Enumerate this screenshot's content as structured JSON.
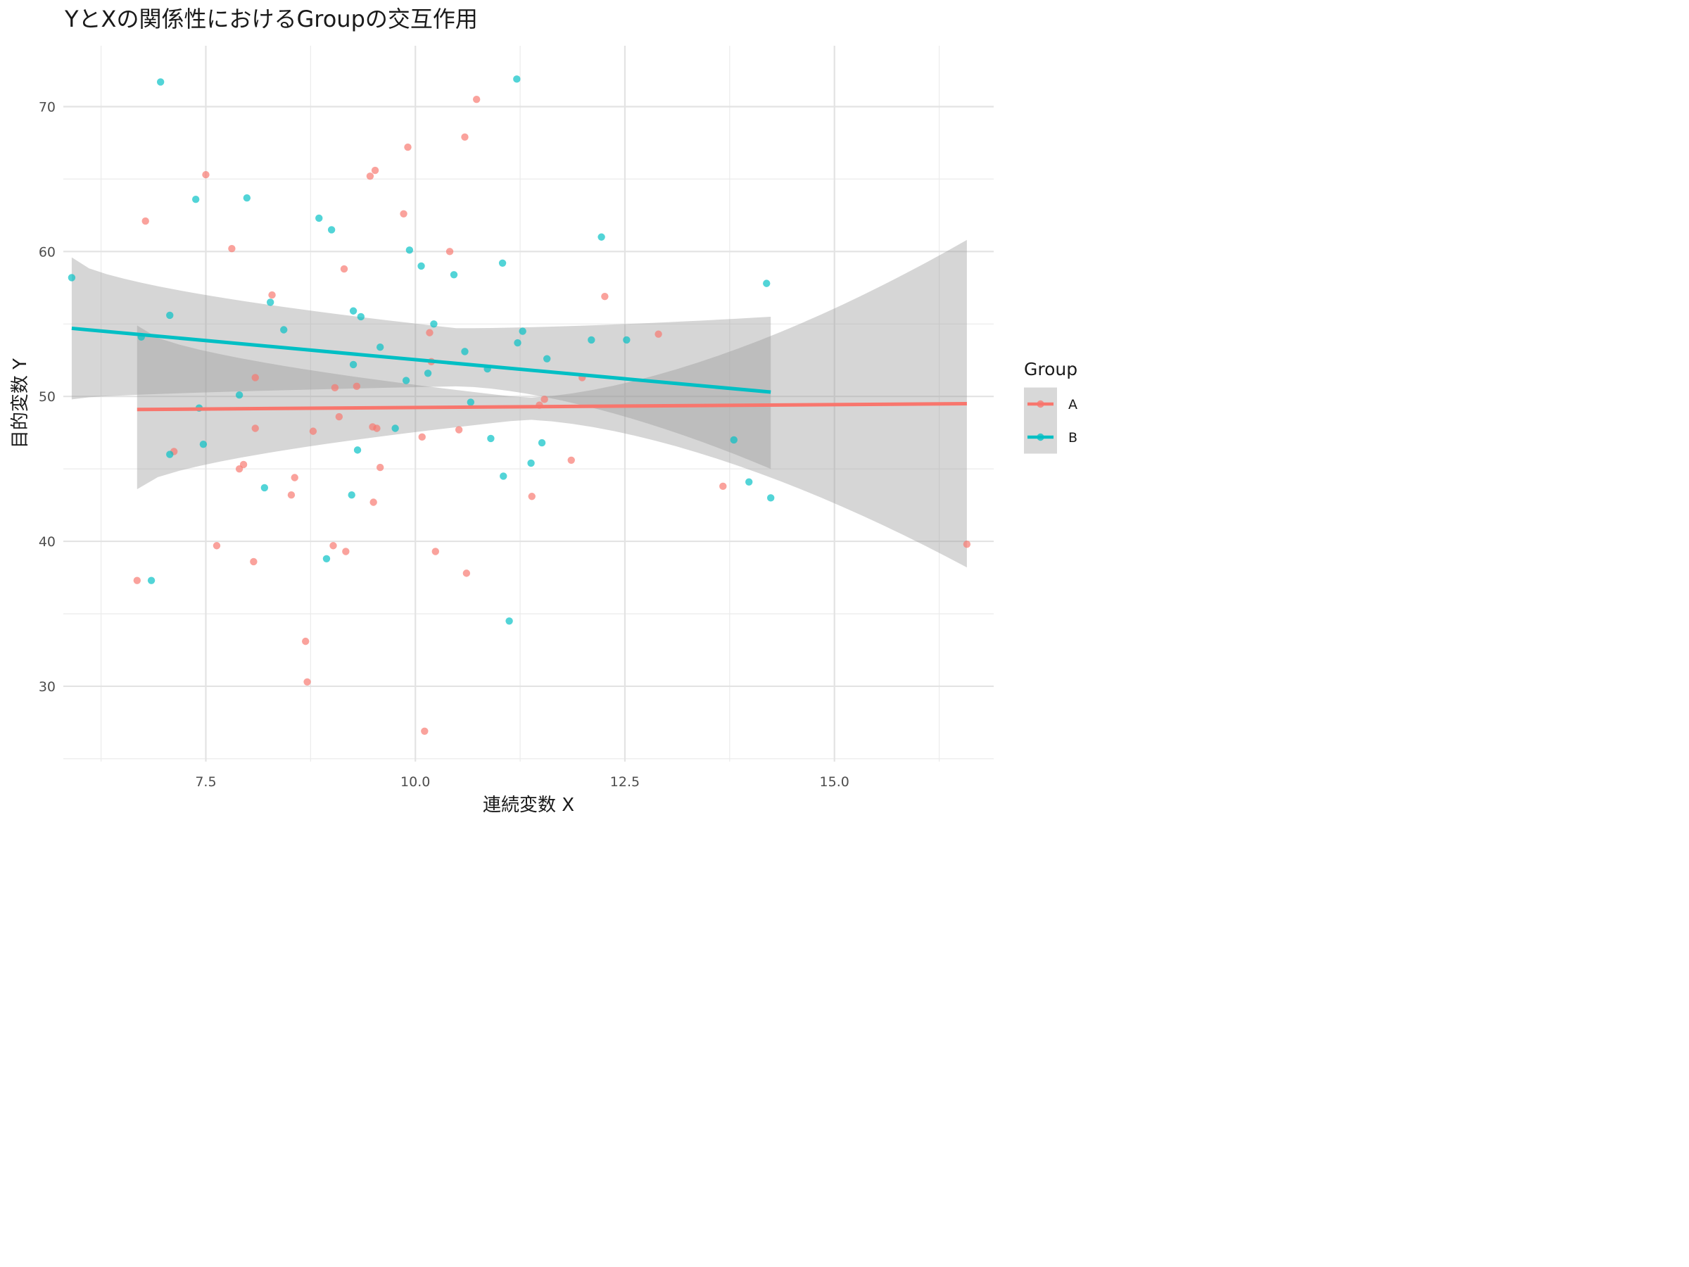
{
  "chart_data": {
    "type": "scatter",
    "title": "YとXの関係性におけるGroupの交互作用",
    "xlabel": "連続変数 X",
    "ylabel": "目的変数 Y",
    "xlim": [
      5.8,
      16.9
    ],
    "ylim": [
      24.8,
      74.2
    ],
    "x_ticks": [
      7.5,
      10.0,
      12.5,
      15.0
    ],
    "x_tick_labels": [
      "7.5",
      "10.0",
      "12.5",
      "15.0"
    ],
    "y_ticks": [
      30,
      40,
      50,
      60,
      70
    ],
    "y_tick_labels": [
      "30",
      "40",
      "50",
      "60",
      "70"
    ],
    "grid": true,
    "legend": {
      "title": "Group",
      "position": "right"
    },
    "series": [
      {
        "name": "A",
        "color": "#F8766D",
        "points": [
          [
            6.68,
            37.3
          ],
          [
            6.78,
            62.1
          ],
          [
            7.12,
            46.2
          ],
          [
            7.5,
            65.3
          ],
          [
            7.63,
            39.7
          ],
          [
            7.81,
            60.2
          ],
          [
            7.9,
            45.0
          ],
          [
            7.95,
            45.3
          ],
          [
            8.07,
            38.6
          ],
          [
            8.09,
            51.3
          ],
          [
            8.09,
            47.8
          ],
          [
            8.29,
            57.0
          ],
          [
            8.52,
            43.2
          ],
          [
            8.56,
            44.4
          ],
          [
            8.69,
            33.1
          ],
          [
            8.71,
            30.3
          ],
          [
            8.78,
            47.6
          ],
          [
            9.02,
            39.7
          ],
          [
            9.04,
            50.6
          ],
          [
            9.09,
            48.6
          ],
          [
            9.15,
            58.8
          ],
          [
            9.17,
            39.3
          ],
          [
            9.3,
            50.7
          ],
          [
            9.46,
            65.2
          ],
          [
            9.49,
            47.9
          ],
          [
            9.5,
            42.7
          ],
          [
            9.52,
            65.6
          ],
          [
            9.54,
            47.8
          ],
          [
            9.58,
            45.1
          ],
          [
            9.86,
            62.6
          ],
          [
            9.91,
            67.2
          ],
          [
            10.08,
            47.2
          ],
          [
            10.11,
            26.9
          ],
          [
            10.17,
            54.4
          ],
          [
            10.19,
            52.4
          ],
          [
            10.24,
            39.3
          ],
          [
            10.41,
            60.0
          ],
          [
            10.52,
            47.7
          ],
          [
            10.59,
            67.9
          ],
          [
            10.61,
            37.8
          ],
          [
            10.73,
            70.5
          ],
          [
            11.39,
            43.1
          ],
          [
            11.48,
            49.4
          ],
          [
            11.54,
            49.8
          ],
          [
            11.86,
            45.6
          ],
          [
            11.99,
            51.3
          ],
          [
            12.26,
            56.9
          ],
          [
            12.9,
            54.3
          ],
          [
            13.67,
            43.8
          ],
          [
            16.58,
            39.8
          ]
        ],
        "fit": {
          "x": [
            6.68,
            16.58
          ],
          "y": [
            49.1,
            49.5
          ]
        },
        "ci": {
          "x": [
            6.68,
            16.58
          ],
          "upper": [
            54.9,
            60.8
          ],
          "lower": [
            43.6,
            38.2
          ],
          "x_min_width": 11.3,
          "upper_mid": 49.9,
          "lower_mid": 48.4
        }
      },
      {
        "name": "B",
        "color": "#00BFC4",
        "points": [
          [
            5.9,
            58.2
          ],
          [
            6.73,
            54.1
          ],
          [
            6.85,
            37.3
          ],
          [
            6.96,
            71.7
          ],
          [
            7.07,
            55.6
          ],
          [
            7.07,
            46.0
          ],
          [
            7.38,
            63.6
          ],
          [
            7.42,
            49.2
          ],
          [
            7.47,
            46.7
          ],
          [
            7.9,
            50.1
          ],
          [
            7.99,
            63.7
          ],
          [
            8.2,
            43.7
          ],
          [
            8.27,
            56.5
          ],
          [
            8.43,
            54.6
          ],
          [
            8.85,
            62.3
          ],
          [
            8.94,
            38.8
          ],
          [
            9.0,
            61.5
          ],
          [
            9.24,
            43.2
          ],
          [
            9.26,
            55.9
          ],
          [
            9.26,
            52.2
          ],
          [
            9.31,
            46.3
          ],
          [
            9.35,
            55.5
          ],
          [
            9.58,
            53.4
          ],
          [
            9.76,
            47.8
          ],
          [
            9.89,
            51.1
          ],
          [
            9.93,
            60.1
          ],
          [
            10.07,
            59.0
          ],
          [
            10.15,
            51.6
          ],
          [
            10.22,
            55.0
          ],
          [
            10.46,
            58.4
          ],
          [
            10.59,
            53.1
          ],
          [
            10.66,
            49.6
          ],
          [
            10.86,
            51.9
          ],
          [
            10.9,
            47.1
          ],
          [
            11.04,
            59.2
          ],
          [
            11.05,
            44.5
          ],
          [
            11.12,
            34.5
          ],
          [
            11.21,
            71.9
          ],
          [
            11.22,
            53.7
          ],
          [
            11.28,
            54.5
          ],
          [
            11.38,
            45.4
          ],
          [
            11.51,
            46.8
          ],
          [
            11.57,
            52.6
          ],
          [
            12.1,
            53.9
          ],
          [
            12.22,
            61.0
          ],
          [
            12.52,
            53.9
          ],
          [
            13.8,
            47.0
          ],
          [
            13.98,
            44.1
          ],
          [
            14.19,
            57.8
          ],
          [
            14.24,
            43.0
          ]
        ],
        "fit": {
          "x": [
            5.9,
            14.24
          ],
          "y": [
            54.7,
            50.3
          ]
        },
        "ci": {
          "x": [
            5.9,
            14.24
          ],
          "upper": [
            59.6,
            55.5
          ],
          "lower": [
            49.8,
            45.0
          ],
          "x_min_width": 10.5,
          "upper_mid": 54.7,
          "lower_mid": 50.7
        }
      }
    ]
  }
}
